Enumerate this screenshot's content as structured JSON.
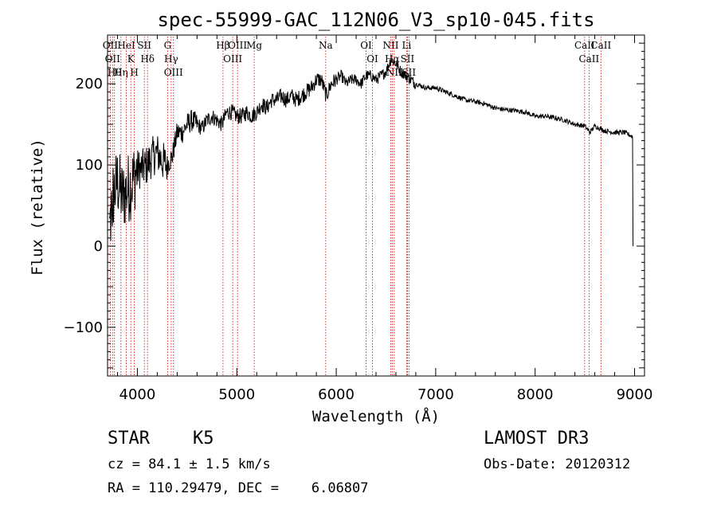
{
  "chart_data": {
    "type": "line",
    "title": "spec-55999-GAC_112N06_V3_sp10-045.fits",
    "xlabel": "Wavelength (Å)",
    "ylabel": "Flux (relative)",
    "xlim": [
      3700,
      9100
    ],
    "ylim": [
      -160,
      260
    ],
    "xticks": [
      4000,
      5000,
      6000,
      7000,
      8000,
      9000
    ],
    "yticks": [
      -100,
      0,
      100,
      200
    ],
    "series": [
      {
        "name": "spectrum",
        "x": [
          3720,
          3750,
          3800,
          3850,
          3900,
          3950,
          4000,
          4050,
          4100,
          4150,
          4200,
          4250,
          4300,
          4350,
          4400,
          4450,
          4500,
          4550,
          4600,
          4650,
          4700,
          4750,
          4800,
          4850,
          4900,
          4950,
          5000,
          5050,
          5100,
          5150,
          5200,
          5250,
          5300,
          5350,
          5400,
          5450,
          5500,
          5550,
          5600,
          5650,
          5700,
          5750,
          5800,
          5850,
          5900,
          5950,
          6000,
          6050,
          6100,
          6150,
          6200,
          6250,
          6300,
          6350,
          6400,
          6450,
          6500,
          6550,
          6600,
          6650,
          6700,
          6750,
          6800,
          6900,
          7000,
          7100,
          7200,
          7300,
          7400,
          7500,
          7600,
          7700,
          7800,
          7900,
          8000,
          8100,
          8200,
          8300,
          8400,
          8500,
          8550,
          8600,
          8650,
          8700,
          8800,
          8900,
          8980
        ],
        "y": [
          20,
          60,
          80,
          60,
          70,
          80,
          95,
          95,
          100,
          110,
          115,
          105,
          100,
          110,
          140,
          140,
          150,
          155,
          150,
          145,
          155,
          160,
          155,
          150,
          165,
          165,
          160,
          160,
          165,
          160,
          165,
          175,
          170,
          180,
          180,
          185,
          180,
          185,
          180,
          185,
          190,
          195,
          205,
          205,
          185,
          200,
          205,
          210,
          200,
          205,
          205,
          200,
          210,
          210,
          205,
          210,
          215,
          230,
          225,
          215,
          210,
          205,
          200,
          195,
          195,
          190,
          185,
          180,
          178,
          175,
          170,
          168,
          167,
          165,
          160,
          160,
          158,
          155,
          150,
          148,
          140,
          148,
          145,
          142,
          140,
          140,
          135
        ]
      }
    ],
    "line_markers": [
      {
        "x": 3727,
        "label": "OII"
      },
      {
        "x": 3750,
        "label": "OII"
      },
      {
        "x": 3770,
        "label": "Hθ"
      },
      {
        "x": 3835,
        "label": "Hη"
      },
      {
        "x": 3889,
        "label": "HeI"
      },
      {
        "x": 3934,
        "label": "K"
      },
      {
        "x": 3969,
        "label": "H"
      },
      {
        "x": 4070,
        "label": "SII"
      },
      {
        "x": 4102,
        "label": "Hδ"
      },
      {
        "x": 4304,
        "label": "G"
      },
      {
        "x": 4340,
        "label": "Hγ"
      },
      {
        "x": 4363,
        "label": "OIII"
      },
      {
        "x": 4861,
        "label": "Hβ"
      },
      {
        "x": 4959,
        "label": "OIII"
      },
      {
        "x": 5007,
        "label": "OIII"
      },
      {
        "x": 5175,
        "label": "Mg"
      },
      {
        "x": 5894,
        "label": "Na"
      },
      {
        "x": 6300,
        "label": "OI"
      },
      {
        "x": 6364,
        "label": "OI"
      },
      {
        "x": 6548,
        "label": "NII"
      },
      {
        "x": 6563,
        "label": "Hα"
      },
      {
        "x": 6583,
        "label": "NII"
      },
      {
        "x": 6708,
        "label": "Li"
      },
      {
        "x": 6716,
        "label": "SII"
      },
      {
        "x": 6731,
        "label": "SII"
      },
      {
        "x": 8498,
        "label": "CaII"
      },
      {
        "x": 8542,
        "label": "CaII"
      },
      {
        "x": 8662,
        "label": "CaII"
      }
    ]
  },
  "info": {
    "class": "STAR",
    "subclass": "K5",
    "survey": "LAMOST DR3",
    "cz": "cz = 84.1 ± 1.5 km/s",
    "obs_date": "Obs-Date: 20120312",
    "radec": "RA = 110.29479, DEC =    6.06807"
  },
  "colors": {
    "spectrum": "#000000",
    "marker": "#cc0000",
    "axes": "#000000"
  }
}
